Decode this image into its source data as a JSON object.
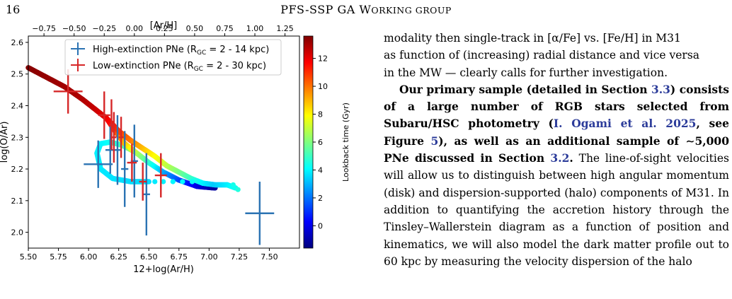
{
  "header": {
    "page_number": "16",
    "running_head": "PFS-SSP GA W",
    "running_head_sc": "ORKING GROUP"
  },
  "figure": {
    "top_axis_label": "[Ar/H]",
    "x_label": "12+log(Ar/H)",
    "y_label": "log(O/Ar)",
    "colorbar_label": "Lookback time  (Gyr)",
    "legend": [
      {
        "label": "High-extinction PNe (R",
        "sub": "GC",
        "suffix": " = 2 - 14 kpc)",
        "color": "#2b73b3"
      },
      {
        "label": "Low-extinction PNe (R",
        "sub": "GC",
        "suffix": " = 2 - 30 kpc)",
        "color": "#d62728"
      }
    ],
    "chart_data": {
      "type": "scatter",
      "xlim": [
        5.5,
        7.75
      ],
      "ylim": [
        1.95,
        2.62
      ],
      "top_xlim": [
        -0.88,
        1.37
      ],
      "x_ticks": [
        "5.50",
        "5.75",
        "6.00",
        "6.25",
        "6.50",
        "6.75",
        "7.00",
        "7.25",
        "7.50"
      ],
      "y_ticks": [
        "2.0",
        "2.1",
        "2.2",
        "2.3",
        "2.4",
        "2.5",
        "2.6"
      ],
      "top_ticks": [
        "−0.75",
        "−0.50",
        "−0.25",
        "0.00",
        "0.25",
        "0.50",
        "0.75",
        "1.00",
        "1.25"
      ],
      "colorbar_ticks": [
        "0",
        "2",
        "4",
        "6",
        "8",
        "10",
        "12"
      ],
      "colorbar_range": [
        -1.6,
        13.6
      ],
      "model_track_a": [
        {
          "x": 5.5,
          "y": 2.52,
          "t": 13.5
        },
        {
          "x": 5.65,
          "y": 2.49,
          "t": 13.3
        },
        {
          "x": 5.8,
          "y": 2.46,
          "t": 13.1
        },
        {
          "x": 5.95,
          "y": 2.42,
          "t": 12.9
        },
        {
          "x": 6.05,
          "y": 2.39,
          "t": 12.6
        },
        {
          "x": 6.15,
          "y": 2.36,
          "t": 12.0
        },
        {
          "x": 6.25,
          "y": 2.32,
          "t": 11.0
        },
        {
          "x": 6.35,
          "y": 2.29,
          "t": 10.0
        },
        {
          "x": 6.45,
          "y": 2.265,
          "t": 9.0
        },
        {
          "x": 6.55,
          "y": 2.24,
          "t": 8.0
        },
        {
          "x": 6.65,
          "y": 2.21,
          "t": 7.0
        },
        {
          "x": 6.75,
          "y": 2.19,
          "t": 6.0
        },
        {
          "x": 6.85,
          "y": 2.17,
          "t": 5.0
        },
        {
          "x": 6.95,
          "y": 2.155,
          "t": 4.0
        },
        {
          "x": 7.05,
          "y": 2.15,
          "t": 3.3
        },
        {
          "x": 7.15,
          "y": 2.15,
          "t": 3.8
        },
        {
          "x": 7.22,
          "y": 2.14,
          "t": 4.3
        }
      ],
      "model_track_b": [
        {
          "x": 6.15,
          "y": 2.36,
          "t": 12.2
        },
        {
          "x": 6.22,
          "y": 2.32,
          "t": 11.0
        },
        {
          "x": 6.3,
          "y": 2.28,
          "t": 9.0
        },
        {
          "x": 6.4,
          "y": 2.25,
          "t": 7.0
        },
        {
          "x": 6.5,
          "y": 2.22,
          "t": 5.0
        },
        {
          "x": 6.62,
          "y": 2.19,
          "t": 3.0
        },
        {
          "x": 6.75,
          "y": 2.165,
          "t": 1.5
        },
        {
          "x": 6.9,
          "y": 2.145,
          "t": 0.0
        },
        {
          "x": 7.05,
          "y": 2.14,
          "t": -1.2
        }
      ],
      "model_track_c": [
        {
          "x": 6.38,
          "y": 2.255,
          "t": 7.0
        },
        {
          "x": 6.28,
          "y": 2.275,
          "t": 5.5
        },
        {
          "x": 6.18,
          "y": 2.285,
          "t": 4.5
        },
        {
          "x": 6.1,
          "y": 2.28,
          "t": 4.0
        },
        {
          "x": 6.07,
          "y": 2.25,
          "t": 3.9
        },
        {
          "x": 6.1,
          "y": 2.2,
          "t": 3.8
        },
        {
          "x": 6.2,
          "y": 2.17,
          "t": 3.7
        },
        {
          "x": 6.35,
          "y": 2.16,
          "t": 3.6
        },
        {
          "x": 6.5,
          "y": 2.16,
          "t": 3.6
        }
      ],
      "model_dots": [
        {
          "x": 6.55,
          "y": 2.16,
          "t": 3.8
        },
        {
          "x": 6.62,
          "y": 2.16,
          "t": 3.9
        },
        {
          "x": 6.7,
          "y": 2.16,
          "t": 4.0
        },
        {
          "x": 6.78,
          "y": 2.16,
          "t": 4.1
        },
        {
          "x": 6.86,
          "y": 2.16,
          "t": 4.2
        },
        {
          "x": 7.2,
          "y": 2.15,
          "t": 4.4
        },
        {
          "x": 7.24,
          "y": 2.135,
          "t": 4.6
        }
      ],
      "series": [
        {
          "name": "High-extinction PNe",
          "points": [
            {
              "x": 6.08,
              "y": 2.215,
              "xerr": 0.12,
              "yerr": 0.075
            },
            {
              "x": 6.18,
              "y": 2.26,
              "xerr": 0.04,
              "yerr": 0.075
            },
            {
              "x": 6.24,
              "y": 2.26,
              "xerr": 0.03,
              "yerr": 0.11
            },
            {
              "x": 6.3,
              "y": 2.2,
              "xerr": 0.03,
              "yerr": 0.12
            },
            {
              "x": 6.38,
              "y": 2.225,
              "xerr": 0.03,
              "yerr": 0.115
            },
            {
              "x": 6.48,
              "y": 2.12,
              "xerr": 0.03,
              "yerr": 0.13
            },
            {
              "x": 7.42,
              "y": 2.06,
              "xerr": 0.12,
              "yerr": 0.1
            }
          ]
        },
        {
          "name": "Low-extinction PNe",
          "points": [
            {
              "x": 5.83,
              "y": 2.445,
              "xerr": 0.12,
              "yerr": 0.07
            },
            {
              "x": 6.13,
              "y": 2.37,
              "xerr": 0.05,
              "yerr": 0.075
            },
            {
              "x": 6.19,
              "y": 2.34,
              "xerr": 0.02,
              "yerr": 0.08
            },
            {
              "x": 6.21,
              "y": 2.3,
              "xerr": 0.02,
              "yerr": 0.08
            },
            {
              "x": 6.27,
              "y": 2.3,
              "xerr": 0.02,
              "yerr": 0.065
            },
            {
              "x": 6.36,
              "y": 2.22,
              "xerr": 0.04,
              "yerr": 0.06
            },
            {
              "x": 6.45,
              "y": 2.16,
              "xerr": 0.03,
              "yerr": 0.06
            },
            {
              "x": 6.6,
              "y": 2.18,
              "xerr": 0.05,
              "yerr": 0.07
            }
          ]
        }
      ]
    }
  },
  "text": {
    "p1_lines": [
      "modality then single-track in [α/Fe] vs. [Fe/H] in M31",
      "as function of (increasing) radial distance and vice versa",
      "in the MW — clearly calls for further investigation."
    ],
    "p2": {
      "b1": "Our primary sample (detailed in Section ",
      "ref1": "3.3",
      "b2": ") consists of a large number of RGB stars selected from Subaru/HSC photometry (",
      "ref2": "I. Ogami et al. 2025",
      "b3": ", see Figure ",
      "ref3": "5",
      "b4": "), as well as an additional sample of ∼5,000 PNe discussed in Section ",
      "ref4": "3.2",
      "b5": ".",
      "n1": " The line-of-sight velocities will allow us to distinguish between high angular momentum (disk) and dispersion-supported (halo) components of M31. In addition to quantifying the accretion history through the Tinsley–Wallerstein diagram as a function of position and kinematics, we will also model the dark matter profile out to 60 kpc by measuring the velocity dispersion of the halo"
    }
  }
}
